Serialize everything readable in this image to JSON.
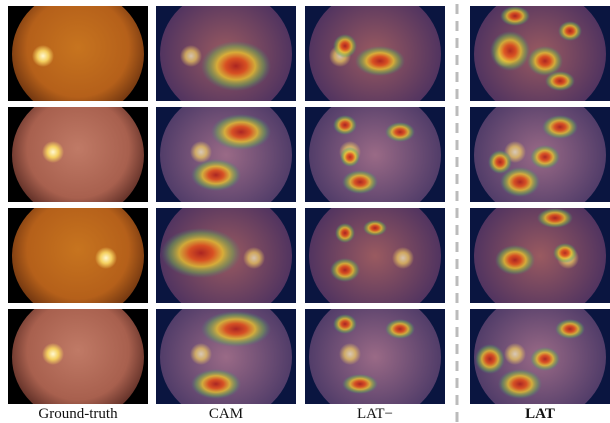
{
  "figure": {
    "columns": [
      "Ground-truth",
      "CAM",
      "LAT−",
      "LAT"
    ]
  }
}
